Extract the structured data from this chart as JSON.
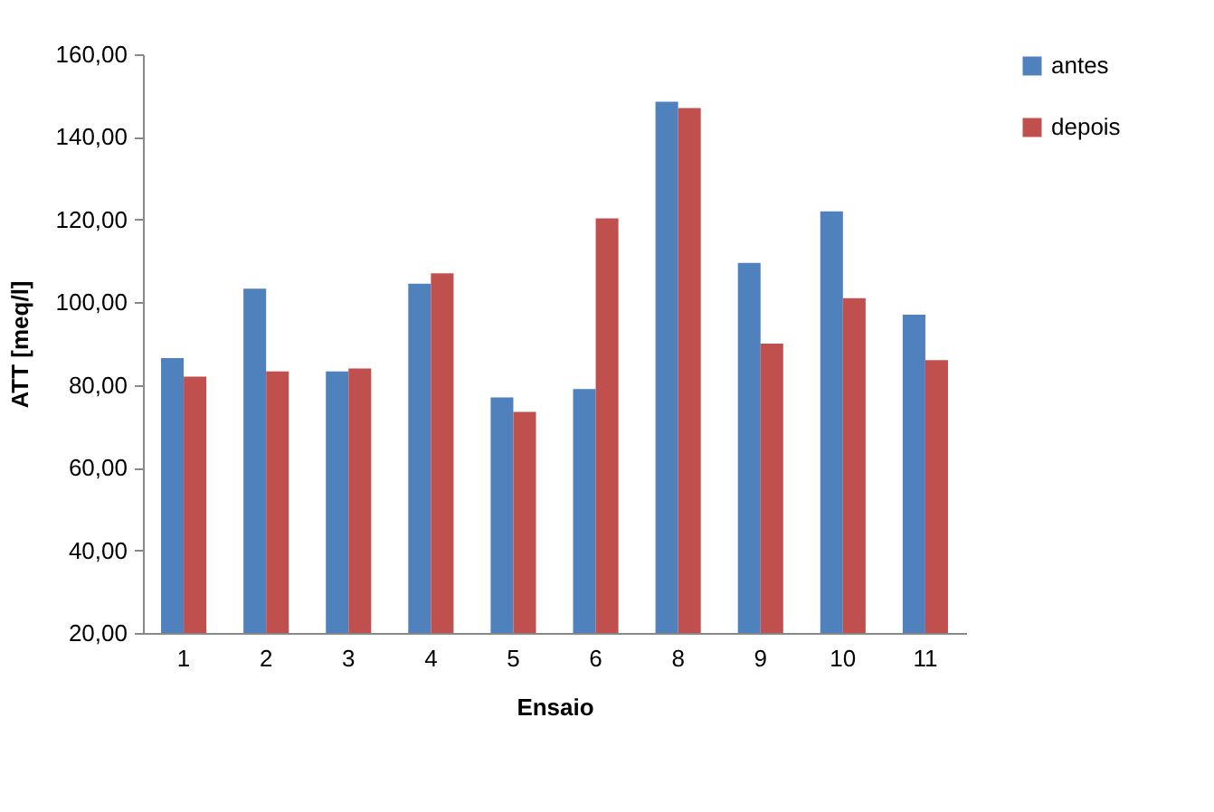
{
  "chart_data": {
    "type": "bar",
    "xlabel": "Ensaio",
    "ylabel": "ATT [meq/l]",
    "categories": [
      "1",
      "2",
      "3",
      "4",
      "5",
      "6",
      "8",
      "9",
      "10",
      "11"
    ],
    "series": [
      {
        "name": "antes",
        "color": "#4f81bd",
        "values": [
          86.5,
          103.3,
          83.3,
          104.5,
          77,
          79,
          148.5,
          109.5,
          122,
          97
        ]
      },
      {
        "name": "depois",
        "color": "#c0504d",
        "values": [
          82,
          83.3,
          84,
          107,
          73.5,
          120.3,
          147,
          90,
          101,
          86
        ]
      }
    ],
    "ylim": [
      20,
      160
    ],
    "yticks": [
      {
        "value": 20,
        "label": "20,00"
      },
      {
        "value": 40,
        "label": "40,00"
      },
      {
        "value": 60,
        "label": "60,00"
      },
      {
        "value": 80,
        "label": "80,00"
      },
      {
        "value": 100,
        "label": "100,00"
      },
      {
        "value": 120,
        "label": "120,00"
      },
      {
        "value": 140,
        "label": "140,00"
      },
      {
        "value": 160,
        "label": "160,00"
      }
    ],
    "grid": false,
    "legend": "right"
  }
}
